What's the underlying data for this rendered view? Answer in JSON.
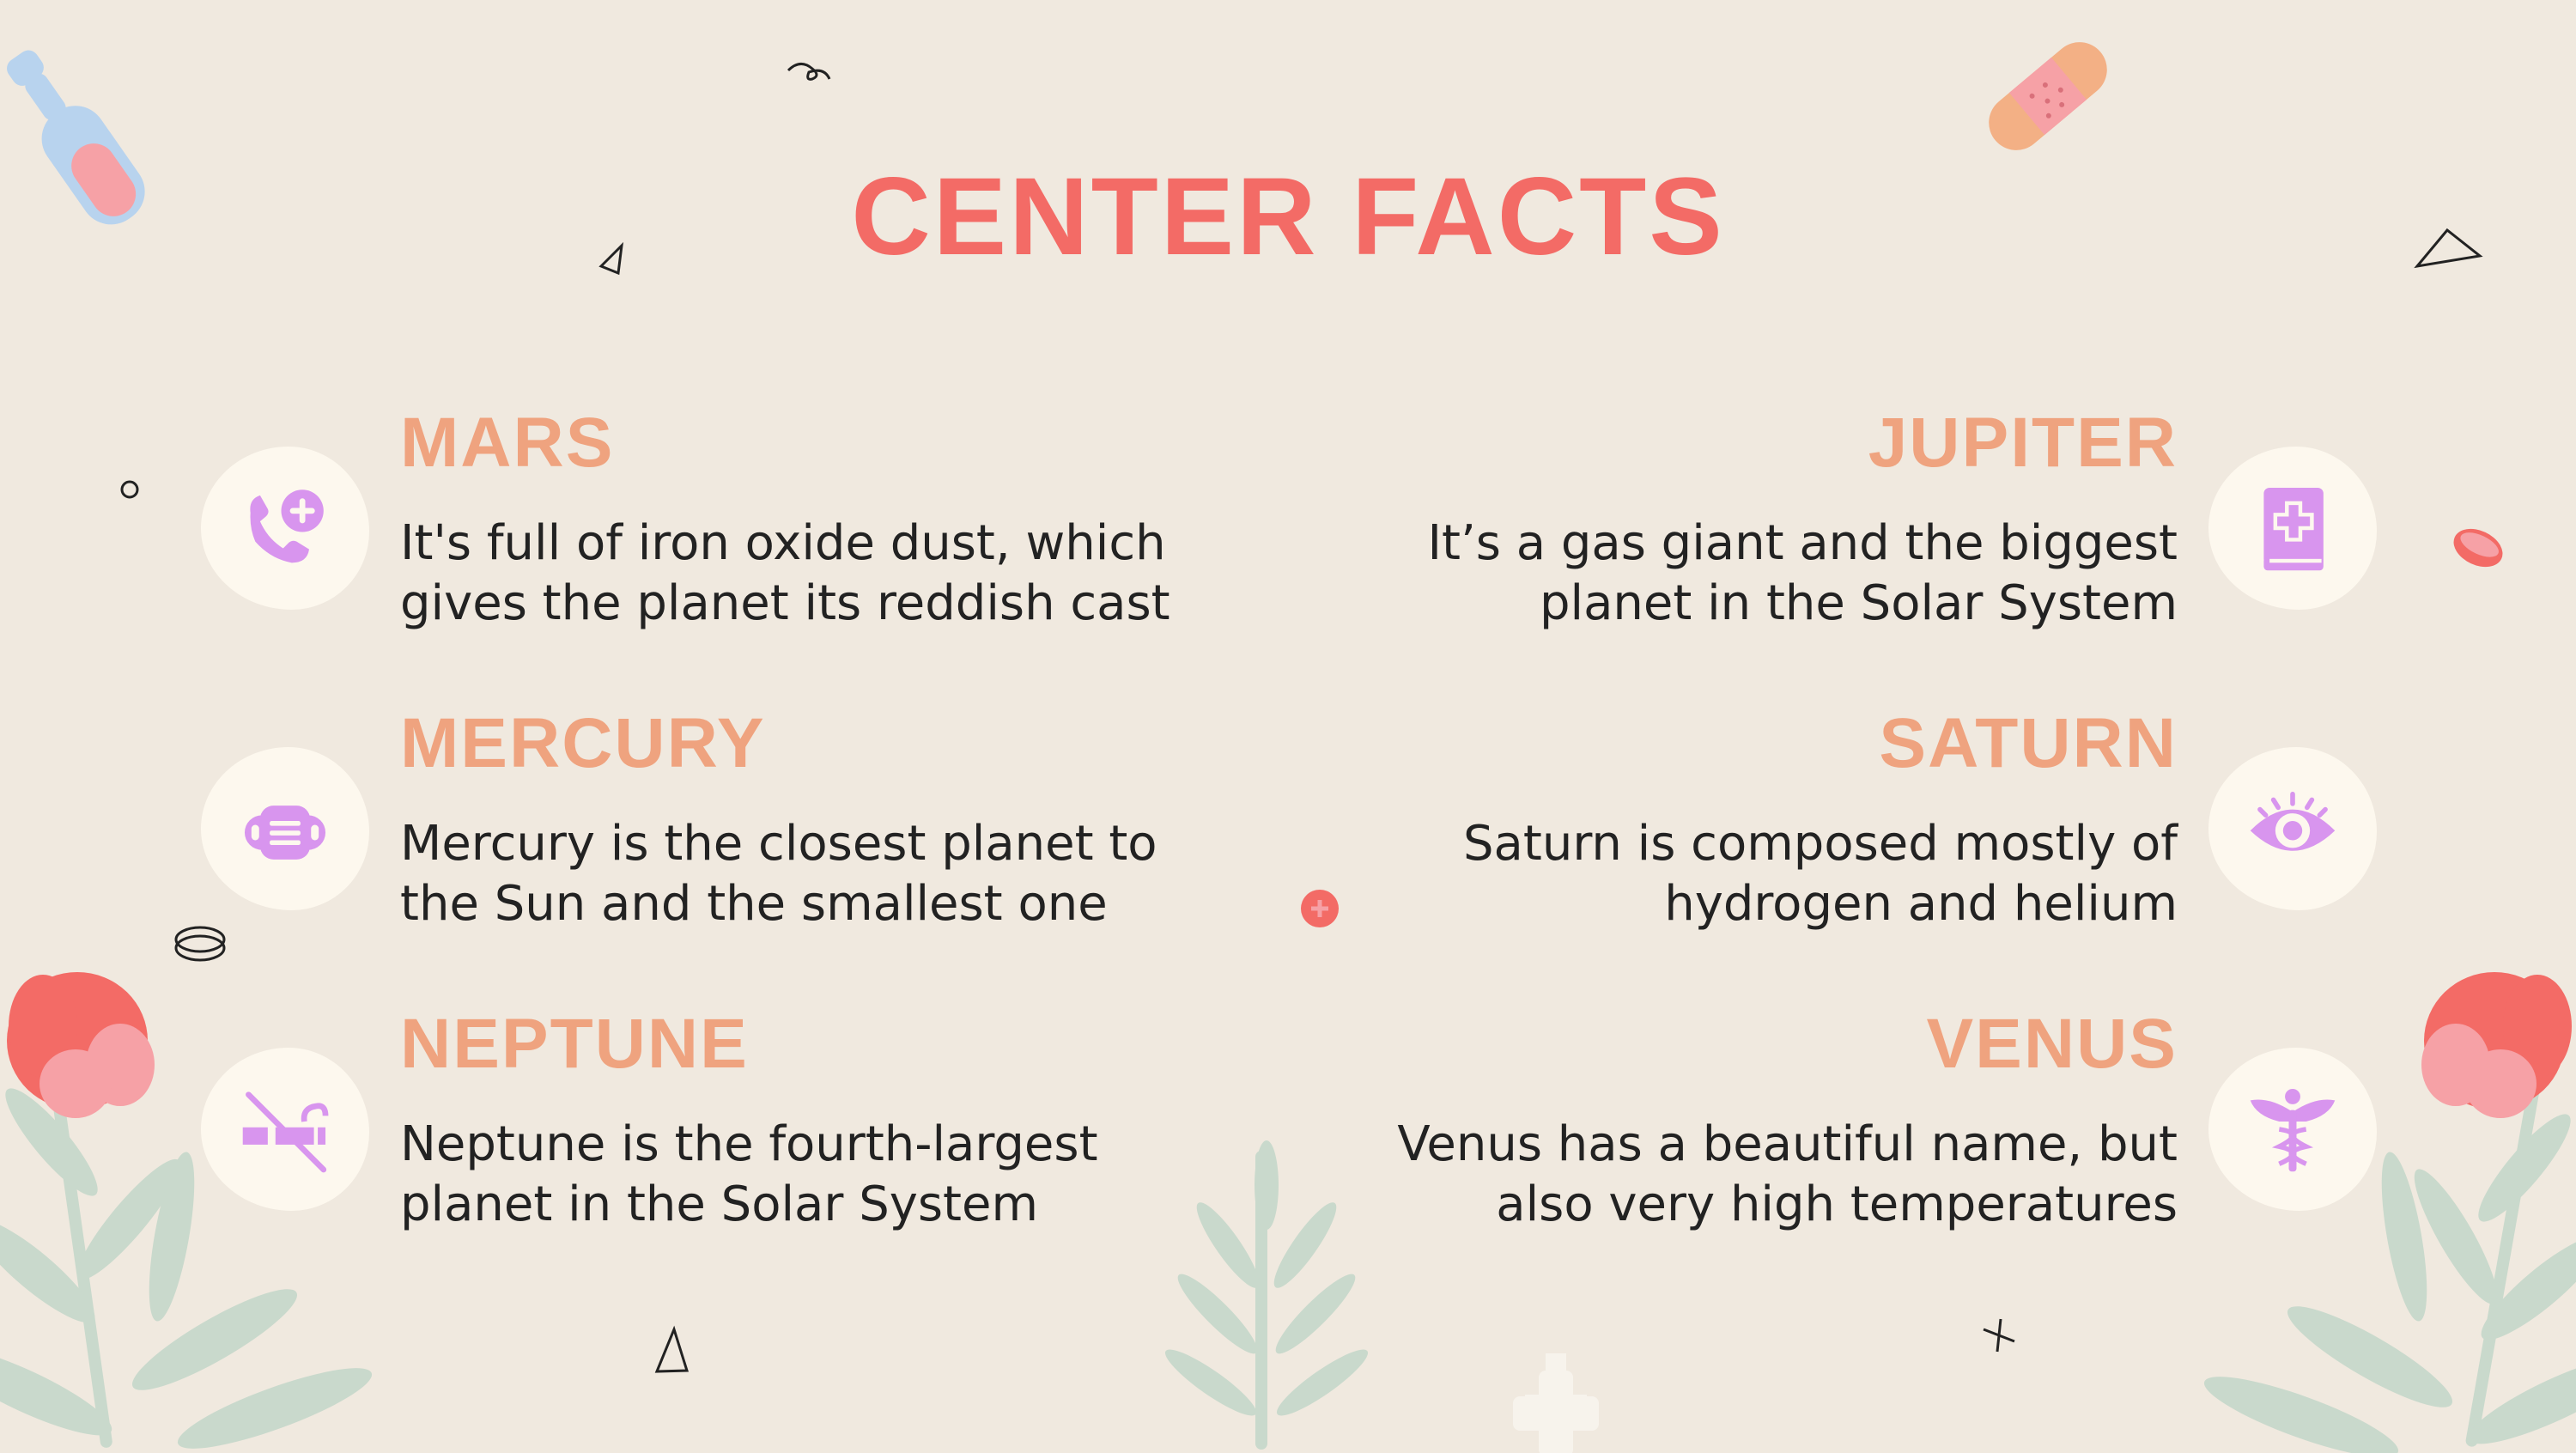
{
  "title": "CENTER FACTS",
  "colors": {
    "background": "#f0e9df",
    "title": "#f36b66",
    "heading": "#efa37f",
    "icon": "#d895ee",
    "icon_bg": "#fdf8ee",
    "leaf": "#c9d9cc",
    "flower": "#f36b66"
  },
  "items": [
    {
      "name": "MARS",
      "desc_line1": "It's full of iron oxide dust, which",
      "desc_line2": "gives the planet its reddish cast",
      "icon": "phone-plus-icon"
    },
    {
      "name": "MERCURY",
      "desc_line1": "Mercury is the closest planet to",
      "desc_line2": "the Sun and the smallest one",
      "icon": "face-mask-icon"
    },
    {
      "name": "NEPTUNE",
      "desc_line1": "Neptune is the fourth-largest",
      "desc_line2": "planet in the Solar System",
      "icon": "no-smoking-icon"
    },
    {
      "name": "JUPITER",
      "desc_line1": "It’s a gas giant and the biggest",
      "desc_line2": "planet in the Solar System",
      "icon": "medical-book-icon"
    },
    {
      "name": "SATURN",
      "desc_line1": "Saturn is composed mostly of",
      "desc_line2": "hydrogen and helium",
      "icon": "eye-icon"
    },
    {
      "name": "VENUS",
      "desc_line1": "Venus has a beautiful name, but",
      "desc_line2": "also very high temperatures",
      "icon": "caduceus-icon"
    }
  ]
}
